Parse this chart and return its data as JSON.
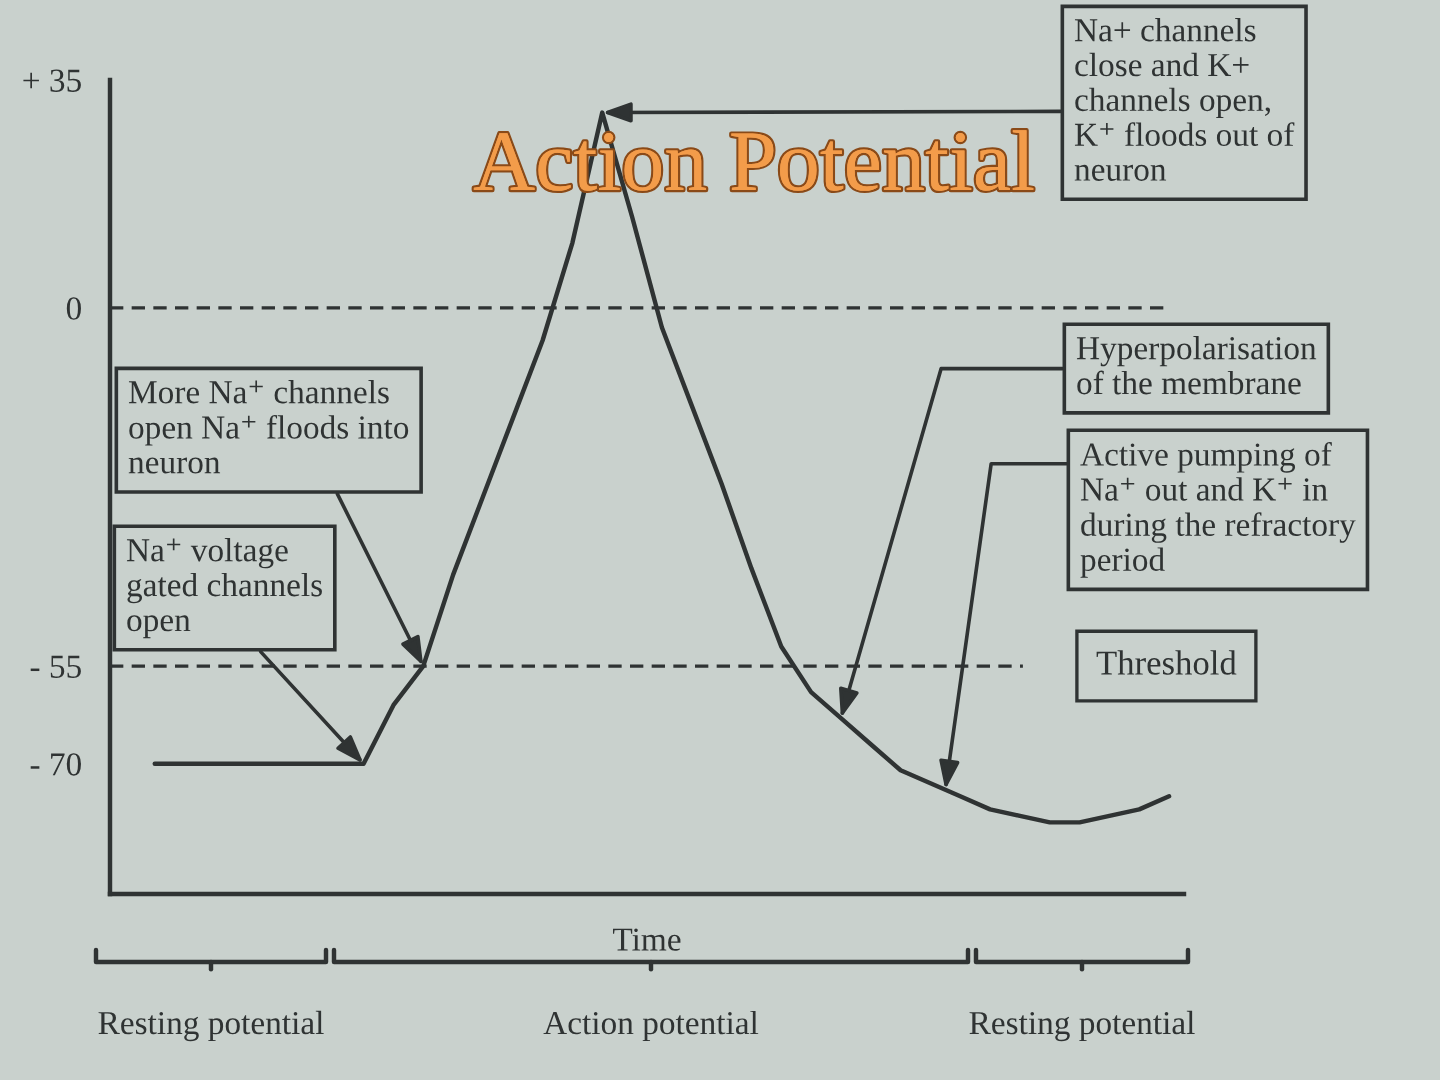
{
  "chart_data": {
    "type": "line",
    "title": "Action Potential",
    "xlabel": "Time",
    "categories": [
      null,
      null,
      null,
      null,
      null,
      null,
      null,
      null,
      null,
      null,
      null,
      null,
      null,
      null,
      null,
      null,
      null,
      null,
      null,
      null,
      null,
      null,
      null,
      null,
      null,
      null,
      null,
      null,
      null,
      null,
      null,
      null,
      null,
      null,
      null,
      null
    ],
    "series": [
      {
        "color": "#2f3333",
        "values": [
          null,
          -70,
          -70,
          -70,
          -70,
          -70,
          -70,
          -70,
          -70,
          -61,
          -55,
          -41,
          -29,
          -17,
          -5,
          10,
          30,
          14,
          -3,
          -15,
          -27,
          -40,
          -52,
          -59,
          -63,
          -67,
          -71,
          -73,
          -75,
          -77,
          -78,
          -79,
          -79,
          -78,
          -77,
          -75
        ]
      }
    ],
    "ylim": [
      -90,
      35
    ],
    "yticks": [
      {
        "value": 35,
        "label": "+ 35"
      },
      0,
      {
        "value": -55,
        "label": "- 55"
      },
      {
        "value": -70,
        "label": "- 70"
      }
    ],
    "ref_lines": [
      {
        "axis": "y",
        "value": 0,
        "line_style": "dashed"
      },
      {
        "axis": "y",
        "value": -55,
        "label": "Threshold",
        "line_style": "dashed"
      }
    ],
    "annotations": [
      "Na+ channels\nclose and K+\nchannels open,\nK⁺ floods out of\nneuron",
      "More Na⁺ channels\nopen Na⁺ floods into\nneuron",
      "Na⁺ voltage\ngated channels\nopen",
      "Hyperpolarisation\nof the membrane",
      "Active pumping of\nNa⁺ out and K⁺ in\nduring the refractory\nperiod",
      "Resting potential",
      "Action potential",
      "Resting potential"
    ]
  }
}
